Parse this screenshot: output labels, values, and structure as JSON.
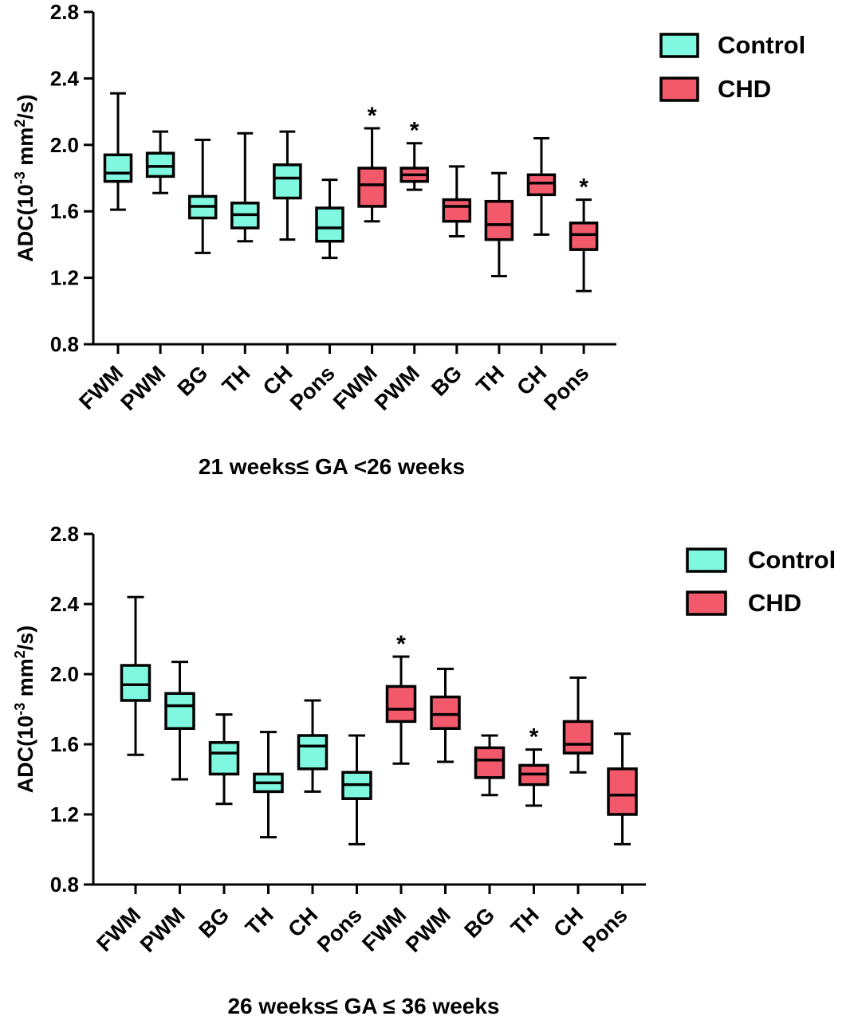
{
  "colors": {
    "control": "#7ff8df",
    "chd": "#f25a6b",
    "axis": "#000000"
  },
  "legend": {
    "control_label": "Control",
    "chd_label": "CHD",
    "placement": "top-right"
  },
  "chart_data": [
    {
      "type": "box",
      "title": "21 weeks≤ GA <26 weeks",
      "ylabel_prefix": "ADC(10",
      "ylabel_exp1": "-3",
      "ylabel_mid": " mm",
      "ylabel_exp2": "2",
      "ylabel_suffix": "/s)",
      "xlabel": "",
      "ylim": [
        0.8,
        2.8
      ],
      "yticks": [
        "0.8",
        "1.2",
        "1.6",
        "2.0",
        "2.4",
        "2.8"
      ],
      "categories": [
        "FWM",
        "PWM",
        "BG",
        "TH",
        "CH",
        "Pons",
        "FWM",
        "PWM",
        "BG",
        "TH",
        "CH",
        "Pons"
      ],
      "groups": [
        "Control",
        "Control",
        "Control",
        "Control",
        "Control",
        "Control",
        "CHD",
        "CHD",
        "CHD",
        "CHD",
        "CHD",
        "CHD"
      ],
      "boxes": [
        {
          "min": 1.61,
          "q1": 1.78,
          "median": 1.83,
          "q3": 1.94,
          "max": 2.31,
          "sig": ""
        },
        {
          "min": 1.71,
          "q1": 1.81,
          "median": 1.87,
          "q3": 1.95,
          "max": 2.08,
          "sig": ""
        },
        {
          "min": 1.35,
          "q1": 1.56,
          "median": 1.63,
          "q3": 1.69,
          "max": 2.03,
          "sig": ""
        },
        {
          "min": 1.42,
          "q1": 1.5,
          "median": 1.58,
          "q3": 1.65,
          "max": 2.07,
          "sig": ""
        },
        {
          "min": 1.43,
          "q1": 1.68,
          "median": 1.8,
          "q3": 1.88,
          "max": 2.08,
          "sig": ""
        },
        {
          "min": 1.32,
          "q1": 1.42,
          "median": 1.5,
          "q3": 1.62,
          "max": 1.79,
          "sig": ""
        },
        {
          "min": 1.54,
          "q1": 1.63,
          "median": 1.76,
          "q3": 1.86,
          "max": 2.1,
          "sig": "*"
        },
        {
          "min": 1.73,
          "q1": 1.78,
          "median": 1.82,
          "q3": 1.86,
          "max": 2.01,
          "sig": "*"
        },
        {
          "min": 1.45,
          "q1": 1.54,
          "median": 1.63,
          "q3": 1.67,
          "max": 1.87,
          "sig": ""
        },
        {
          "min": 1.21,
          "q1": 1.43,
          "median": 1.52,
          "q3": 1.66,
          "max": 1.83,
          "sig": ""
        },
        {
          "min": 1.46,
          "q1": 1.7,
          "median": 1.77,
          "q3": 1.82,
          "max": 2.04,
          "sig": ""
        },
        {
          "min": 1.12,
          "q1": 1.37,
          "median": 1.46,
          "q3": 1.53,
          "max": 1.67,
          "sig": "*"
        }
      ]
    },
    {
      "type": "box",
      "title": "26 weeks≤ GA ≤ 36 weeks",
      "ylabel_prefix": "ADC(10",
      "ylabel_exp1": "-3",
      "ylabel_mid": " mm",
      "ylabel_exp2": "2",
      "ylabel_suffix": "/s)",
      "xlabel": "",
      "ylim": [
        0.8,
        2.8
      ],
      "yticks": [
        "0.8",
        "1.2",
        "1.6",
        "2.0",
        "2.4",
        "2.8"
      ],
      "categories": [
        "FWM",
        "PWM",
        "BG",
        "TH",
        "CH",
        "Pons",
        "FWM",
        "PWM",
        "BG",
        "TH",
        "CH",
        "Pons"
      ],
      "groups": [
        "Control",
        "Control",
        "Control",
        "Control",
        "Control",
        "Control",
        "CHD",
        "CHD",
        "CHD",
        "CHD",
        "CHD",
        "CHD"
      ],
      "boxes": [
        {
          "min": 1.54,
          "q1": 1.85,
          "median": 1.94,
          "q3": 2.05,
          "max": 2.44,
          "sig": ""
        },
        {
          "min": 1.4,
          "q1": 1.69,
          "median": 1.82,
          "q3": 1.89,
          "max": 2.07,
          "sig": ""
        },
        {
          "min": 1.26,
          "q1": 1.43,
          "median": 1.55,
          "q3": 1.61,
          "max": 1.77,
          "sig": ""
        },
        {
          "min": 1.07,
          "q1": 1.33,
          "median": 1.38,
          "q3": 1.43,
          "max": 1.67,
          "sig": ""
        },
        {
          "min": 1.33,
          "q1": 1.46,
          "median": 1.59,
          "q3": 1.65,
          "max": 1.85,
          "sig": ""
        },
        {
          "min": 1.03,
          "q1": 1.29,
          "median": 1.37,
          "q3": 1.44,
          "max": 1.65,
          "sig": ""
        },
        {
          "min": 1.49,
          "q1": 1.73,
          "median": 1.8,
          "q3": 1.93,
          "max": 2.1,
          "sig": "*"
        },
        {
          "min": 1.5,
          "q1": 1.69,
          "median": 1.77,
          "q3": 1.87,
          "max": 2.03,
          "sig": ""
        },
        {
          "min": 1.31,
          "q1": 1.41,
          "median": 1.51,
          "q3": 1.58,
          "max": 1.65,
          "sig": ""
        },
        {
          "min": 1.25,
          "q1": 1.37,
          "median": 1.43,
          "q3": 1.48,
          "max": 1.57,
          "sig": "*"
        },
        {
          "min": 1.44,
          "q1": 1.55,
          "median": 1.6,
          "q3": 1.73,
          "max": 1.98,
          "sig": ""
        },
        {
          "min": 1.03,
          "q1": 1.2,
          "median": 1.31,
          "q3": 1.46,
          "max": 1.66,
          "sig": ""
        }
      ]
    }
  ]
}
